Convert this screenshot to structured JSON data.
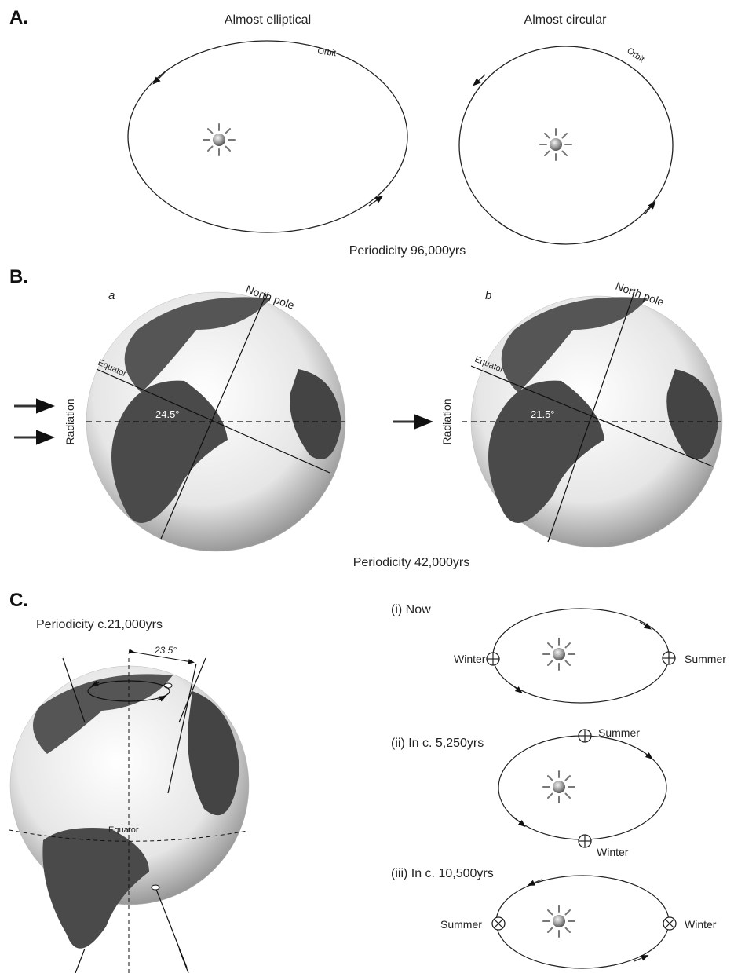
{
  "section_a": {
    "letter": "A.",
    "left_title": "Almost elliptical",
    "right_title": "Almost circular",
    "orbit_label": "Orbit",
    "periodicity": "Periodicity 96,000yrs"
  },
  "section_b": {
    "letter": "B.",
    "panel_a": {
      "tag": "a",
      "north": "North pole",
      "equator": "Equator",
      "angle": "24.5°",
      "radiation": "Radiation"
    },
    "panel_b": {
      "tag": "b",
      "north": "North pole",
      "equator": "Equator",
      "angle": "21.5°",
      "radiation": "Radiation"
    },
    "periodicity": "Periodicity 42,000yrs"
  },
  "section_c": {
    "letter": "C.",
    "periodicity": "Periodicity c.21,000yrs",
    "tilt": "23.5°",
    "equator": "Equator",
    "now": {
      "title": "(i) Now",
      "left": "Winter",
      "right": "Summer"
    },
    "later1": {
      "title": "(ii) In c. 5,250yrs",
      "top": "Summer",
      "bottom": "Winter"
    },
    "later2": {
      "title": "(iii) In c. 10,500yrs",
      "left": "Summer",
      "right": "Winter"
    }
  }
}
